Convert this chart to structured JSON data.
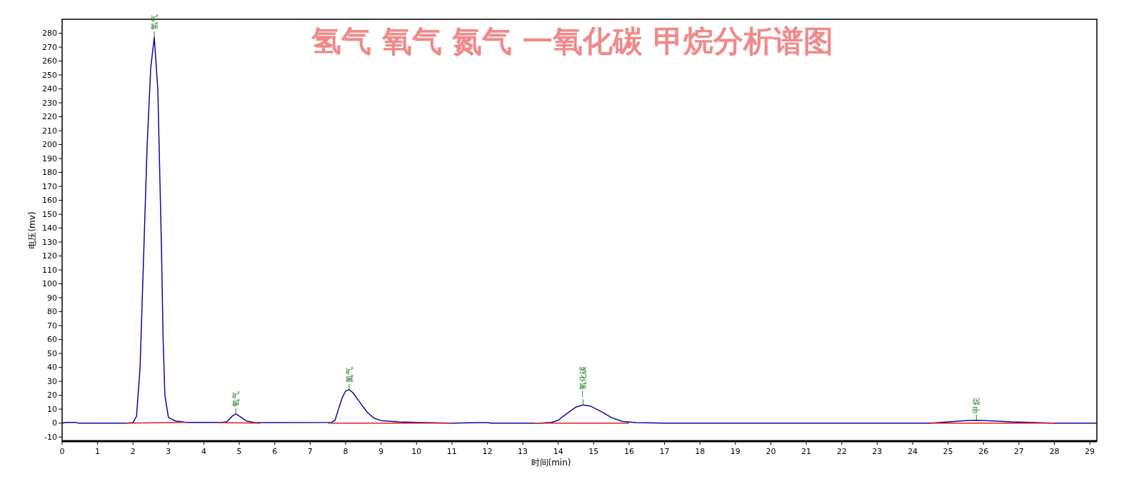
{
  "chart_data": {
    "type": "line",
    "title": "氢气 氧气 氮气 一氧化碳 甲烷分析谱图",
    "xlabel": "时间(min)",
    "ylabel": "电压(mv)",
    "x": [
      0,
      0.1,
      0.4,
      0.45,
      1.8,
      2.0,
      2.1,
      2.2,
      2.3,
      2.4,
      2.5,
      2.6,
      2.7,
      2.8,
      2.85,
      2.9,
      3.0,
      3.2,
      3.5,
      4.5,
      4.65,
      4.8,
      4.9,
      5.0,
      5.2,
      5.4,
      5.8,
      7.6,
      7.7,
      7.8,
      7.9,
      8.0,
      8.1,
      8.2,
      8.4,
      8.6,
      8.8,
      9.0,
      9.5,
      10,
      11,
      11.8,
      12,
      12.1,
      13.5,
      13.8,
      14,
      14.2,
      14.5,
      14.7,
      14.9,
      15.2,
      15.5,
      15.8,
      16.2,
      17,
      24.5,
      25,
      25.5,
      25.8,
      26.3,
      26.8,
      27.5,
      28,
      29.2
    ],
    "series": [
      {
        "color": "#0a0a9a",
        "values": [
          0,
          0.5,
          0.5,
          0,
          0,
          0.3,
          5,
          40,
          120,
          200,
          255,
          277,
          240,
          130,
          60,
          20,
          4,
          1.5,
          0.5,
          0.5,
          1,
          5,
          6.5,
          5,
          1.5,
          0.5,
          0.3,
          0.5,
          2,
          10,
          18,
          23,
          24,
          22,
          15,
          8,
          3.5,
          1.8,
          0.8,
          0.5,
          0,
          0.3,
          0.3,
          0,
          0,
          0.5,
          2,
          6,
          11.5,
          13,
          12.3,
          8.5,
          4,
          1.2,
          0.3,
          0,
          0,
          0.8,
          1.8,
          2,
          1.5,
          0.8,
          0.3,
          0,
          0
        ]
      },
      {
        "color": "#e02020",
        "x": [
          1.8,
          3.5,
          null,
          4.4,
          5.6,
          null,
          7.5,
          11,
          null,
          13.3,
          16,
          null,
          24.5,
          28
        ],
        "values": [
          0,
          0.5,
          null,
          0.3,
          0,
          null,
          0,
          0,
          null,
          0,
          0,
          null,
          0,
          0
        ]
      }
    ],
    "annotations": [
      {
        "text": "氢气",
        "x": 2.6,
        "y": 277
      },
      {
        "text": "氧气",
        "x": 4.9,
        "y": 6.5
      },
      {
        "text": "氮气",
        "x": 8.1,
        "y": 24
      },
      {
        "text": "一氧化碳",
        "x": 14.7,
        "y": 13
      },
      {
        "text": "甲烷",
        "x": 25.8,
        "y": 2
      }
    ],
    "xlim": [
      0,
      29.2
    ],
    "xticks": [
      0,
      1,
      2,
      3,
      4,
      5,
      6,
      7,
      8,
      9,
      10,
      11,
      12,
      13,
      14,
      15,
      16,
      17,
      18,
      19,
      20,
      21,
      22,
      23,
      24,
      25,
      26,
      27,
      28,
      29
    ],
    "ylim": [
      -13,
      290
    ],
    "yticks": [
      -10,
      0,
      10,
      20,
      30,
      40,
      50,
      60,
      70,
      80,
      90,
      100,
      110,
      120,
      130,
      140,
      150,
      160,
      170,
      180,
      190,
      200,
      210,
      220,
      230,
      240,
      250,
      260,
      270,
      280
    ],
    "grid": false
  }
}
